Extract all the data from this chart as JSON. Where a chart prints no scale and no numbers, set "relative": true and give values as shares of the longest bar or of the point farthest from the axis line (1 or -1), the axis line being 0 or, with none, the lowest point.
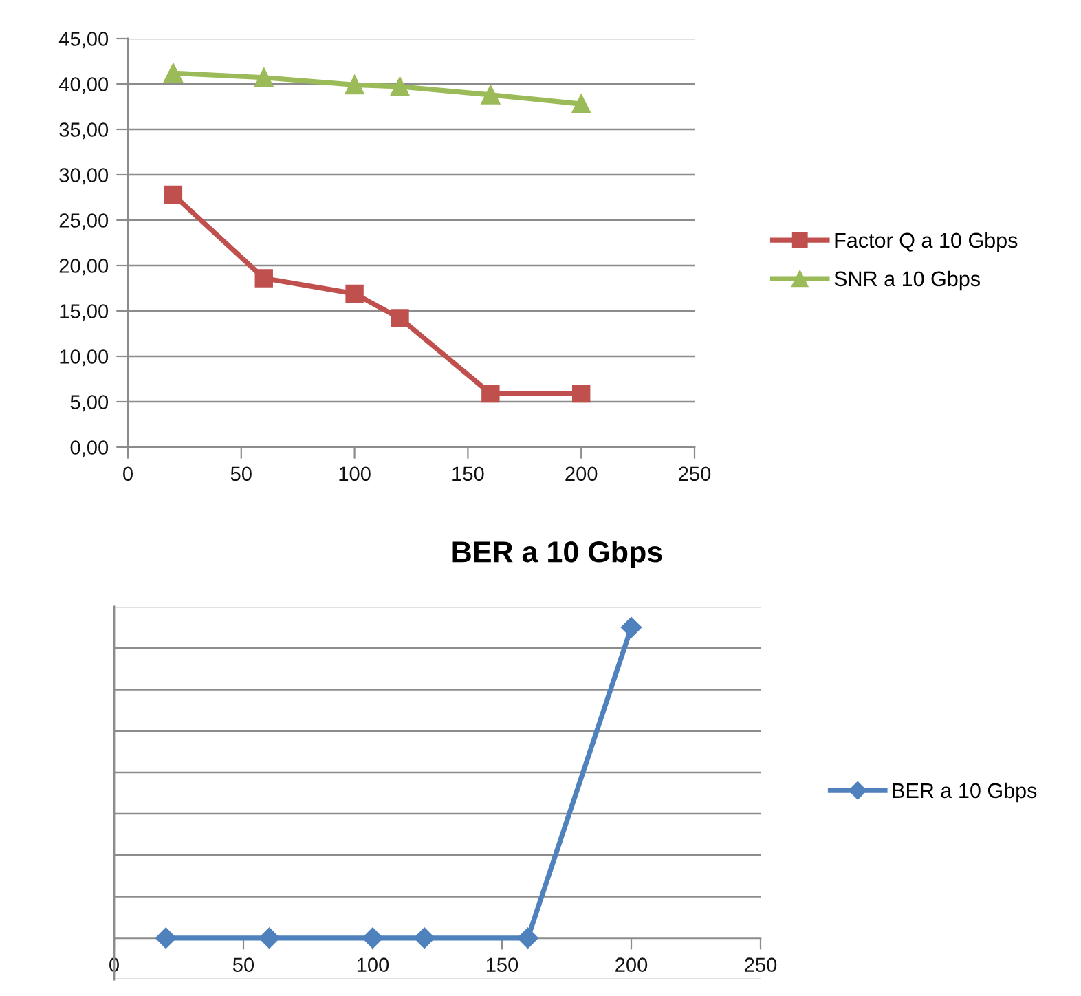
{
  "chart_data": [
    {
      "type": "line",
      "x": [
        20,
        60,
        100,
        120,
        160,
        200
      ],
      "series": [
        {
          "name": "Factor Q a 10 Gbps",
          "color": "#c0504d",
          "marker": "square",
          "values": [
            27.8,
            18.6,
            16.9,
            14.2,
            5.9,
            5.9
          ]
        },
        {
          "name": "SNR a 10 Gbps",
          "color": "#9bbb59",
          "marker": "triangle",
          "values": [
            41.2,
            40.7,
            39.9,
            39.7,
            38.8,
            37.8
          ]
        }
      ],
      "xlim": [
        0,
        250
      ],
      "xticks": [
        0,
        50,
        100,
        150,
        200,
        250
      ],
      "ylim": [
        0,
        45
      ],
      "yticks": [
        {
          "value": 0,
          "label": "0,00"
        },
        {
          "value": 5,
          "label": "5,00"
        },
        {
          "value": 10,
          "label": "10,00"
        },
        {
          "value": 15,
          "label": "15,00"
        },
        {
          "value": 20,
          "label": "20,00"
        },
        {
          "value": 25,
          "label": "25,00"
        },
        {
          "value": 30,
          "label": "30,00"
        },
        {
          "value": 35,
          "label": "35,00"
        },
        {
          "value": 40,
          "label": "40,00"
        },
        {
          "value": 45,
          "label": "45,00"
        }
      ],
      "grid": "y",
      "legend": "right"
    },
    {
      "type": "line",
      "title": "BER a 10 Gbps",
      "x": [
        20,
        60,
        100,
        120,
        160,
        200
      ],
      "series": [
        {
          "name": "BER a 10 Gbps",
          "color": "#4f81bd",
          "marker": "diamond",
          "values": [
            0,
            0,
            0,
            0,
            0,
            1
          ]
        }
      ],
      "relative": true,
      "xlim": [
        0,
        250
      ],
      "xticks": [
        0,
        50,
        100,
        150,
        200,
        250
      ],
      "grid": "y",
      "legend": "right"
    }
  ]
}
